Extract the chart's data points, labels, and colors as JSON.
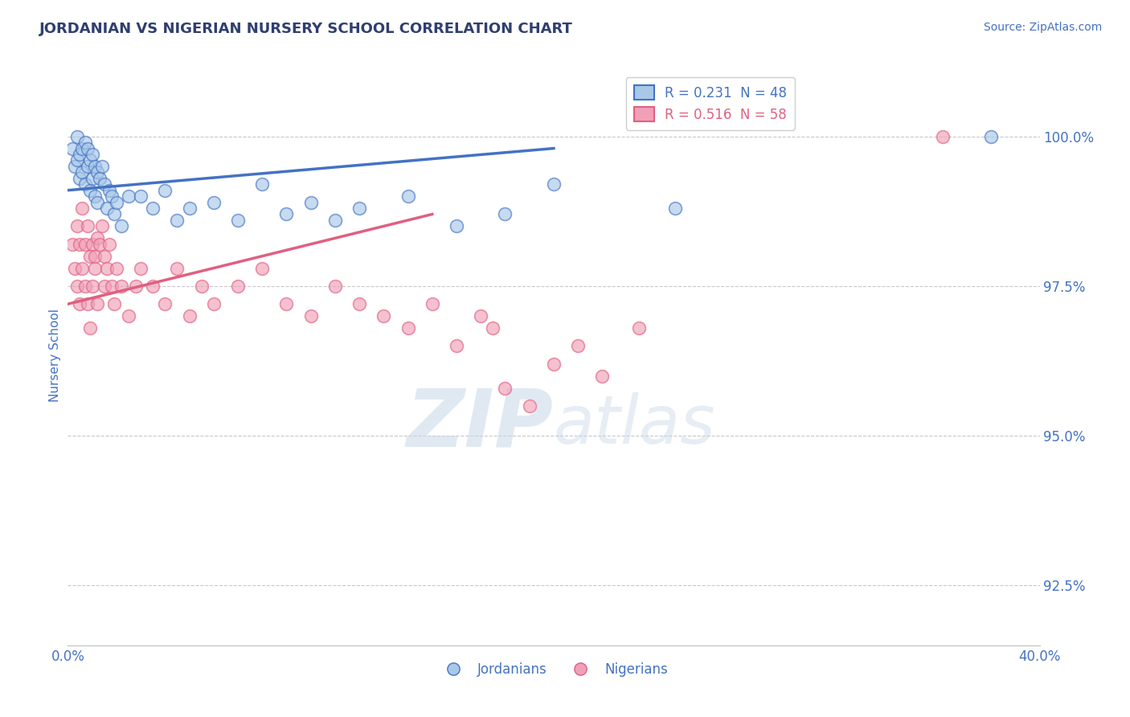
{
  "title": "JORDANIAN VS NIGERIAN NURSERY SCHOOL CORRELATION CHART",
  "source_text": "Source: ZipAtlas.com",
  "ylabel": "Nursery School",
  "xlim": [
    0.0,
    40.0
  ],
  "ylim": [
    91.5,
    101.2
  ],
  "xticks": [
    0.0,
    10.0,
    20.0,
    30.0,
    40.0
  ],
  "xtick_labels": [
    "0.0%",
    "",
    "",
    "",
    "40.0%"
  ],
  "ytick_positions": [
    92.5,
    95.0,
    97.5,
    100.0
  ],
  "ytick_labels": [
    "92.5%",
    "95.0%",
    "97.5%",
    "100.0%"
  ],
  "jordan_R": 0.231,
  "jordan_N": 48,
  "nigeria_R": 0.516,
  "nigeria_N": 58,
  "legend_labels": [
    "Jordanians",
    "Nigerians"
  ],
  "blue_color": "#A8C8E8",
  "pink_color": "#F0A0B8",
  "blue_line_color": "#4472C4",
  "pink_line_color": "#E06080",
  "jordan_x": [
    0.2,
    0.3,
    0.4,
    0.4,
    0.5,
    0.5,
    0.6,
    0.6,
    0.7,
    0.7,
    0.8,
    0.8,
    0.9,
    0.9,
    1.0,
    1.0,
    1.1,
    1.1,
    1.2,
    1.2,
    1.3,
    1.4,
    1.5,
    1.6,
    1.7,
    1.8,
    1.9,
    2.0,
    2.2,
    2.5,
    3.0,
    3.5,
    4.0,
    4.5,
    5.0,
    6.0,
    7.0,
    8.0,
    9.0,
    10.0,
    11.0,
    12.0,
    14.0,
    16.0,
    18.0,
    20.0,
    25.0,
    38.0
  ],
  "jordan_y": [
    99.8,
    99.5,
    99.6,
    100.0,
    99.7,
    99.3,
    99.8,
    99.4,
    99.9,
    99.2,
    99.8,
    99.5,
    99.6,
    99.1,
    99.7,
    99.3,
    99.5,
    99.0,
    99.4,
    98.9,
    99.3,
    99.5,
    99.2,
    98.8,
    99.1,
    99.0,
    98.7,
    98.9,
    98.5,
    99.0,
    99.0,
    98.8,
    99.1,
    98.6,
    98.8,
    98.9,
    98.6,
    99.2,
    98.7,
    98.9,
    98.6,
    98.8,
    99.0,
    98.5,
    98.7,
    99.2,
    98.8,
    100.0
  ],
  "nigeria_x": [
    0.2,
    0.3,
    0.4,
    0.4,
    0.5,
    0.5,
    0.6,
    0.6,
    0.7,
    0.7,
    0.8,
    0.8,
    0.9,
    0.9,
    1.0,
    1.0,
    1.1,
    1.1,
    1.2,
    1.2,
    1.3,
    1.4,
    1.5,
    1.5,
    1.6,
    1.7,
    1.8,
    1.9,
    2.0,
    2.2,
    2.5,
    2.8,
    3.0,
    3.5,
    4.0,
    4.5,
    5.0,
    5.5,
    6.0,
    7.0,
    8.0,
    9.0,
    10.0,
    11.0,
    12.0,
    13.0,
    14.0,
    15.0,
    16.0,
    17.0,
    17.5,
    18.0,
    19.0,
    20.0,
    21.0,
    22.0,
    23.5,
    36.0
  ],
  "nigeria_y": [
    98.2,
    97.8,
    98.5,
    97.5,
    98.2,
    97.2,
    98.8,
    97.8,
    98.2,
    97.5,
    98.5,
    97.2,
    98.0,
    96.8,
    98.2,
    97.5,
    98.0,
    97.8,
    98.3,
    97.2,
    98.2,
    98.5,
    97.5,
    98.0,
    97.8,
    98.2,
    97.5,
    97.2,
    97.8,
    97.5,
    97.0,
    97.5,
    97.8,
    97.5,
    97.2,
    97.8,
    97.0,
    97.5,
    97.2,
    97.5,
    97.8,
    97.2,
    97.0,
    97.5,
    97.2,
    97.0,
    96.8,
    97.2,
    96.5,
    97.0,
    96.8,
    95.8,
    95.5,
    96.2,
    96.5,
    96.0,
    96.8,
    100.0
  ],
  "watermark_zip": "ZIP",
  "watermark_atlas": "atlas",
  "background_color": "#FFFFFF",
  "grid_color": "#C8C8C8",
  "axis_color": "#4472C4",
  "title_color": "#2F3F6F",
  "tick_label_color": "#4472C4"
}
